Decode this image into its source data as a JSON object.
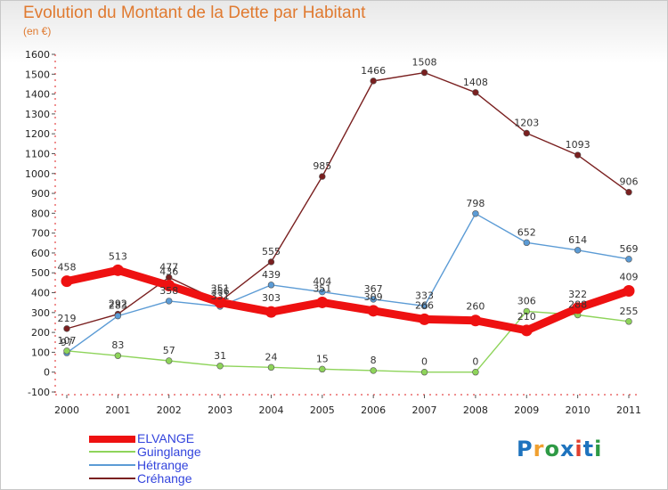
{
  "title": "Evolution du Montant de la Dette par Habitant",
  "subtitle": "(en €)",
  "logo": {
    "text": "Proxiti",
    "letters": [
      {
        "ch": "P",
        "color": "#1e73be"
      },
      {
        "ch": "r",
        "color": "#f0a030"
      },
      {
        "ch": "o",
        "color": "#2e9a45"
      },
      {
        "ch": "x",
        "color": "#1e73be"
      },
      {
        "ch": "i",
        "color": "#e04030"
      },
      {
        "ch": "t",
        "color": "#1e73be"
      },
      {
        "ch": "i",
        "color": "#2e9a45"
      }
    ]
  },
  "chart_data": {
    "type": "line",
    "x": [
      "2000",
      "2001",
      "2002",
      "2003",
      "2004",
      "2005",
      "2006",
      "2007",
      "2008",
      "2009",
      "2010",
      "2011"
    ],
    "ylim": [
      -100,
      1600
    ],
    "yticks": [
      -100,
      0,
      100,
      200,
      300,
      400,
      500,
      600,
      700,
      800,
      900,
      1000,
      1100,
      1200,
      1300,
      1400,
      1500,
      1600
    ],
    "grid": false,
    "legend_position": "bottom-left",
    "series": [
      {
        "name": "Créhange",
        "color": "#7a2020",
        "values": [
          219,
          292,
          477,
          356,
          555,
          985,
          1466,
          1508,
          1408,
          1203,
          1093,
          906
        ]
      },
      {
        "name": "Hétrange",
        "color": "#5b9bd5",
        "values": [
          97,
          283,
          358,
          331,
          439,
          404,
          367,
          333,
          798,
          652,
          614,
          569
        ]
      },
      {
        "name": "Guinglange",
        "color": "#8ed45a",
        "values": [
          107,
          83,
          57,
          31,
          24,
          15,
          8,
          0,
          0,
          306,
          288,
          255
        ]
      },
      {
        "name": "ELVANGE",
        "color": "#ee1111",
        "values": [
          458,
          513,
          436,
          351,
          303,
          351,
          309,
          266,
          260,
          210,
          322,
          409
        ]
      }
    ]
  }
}
